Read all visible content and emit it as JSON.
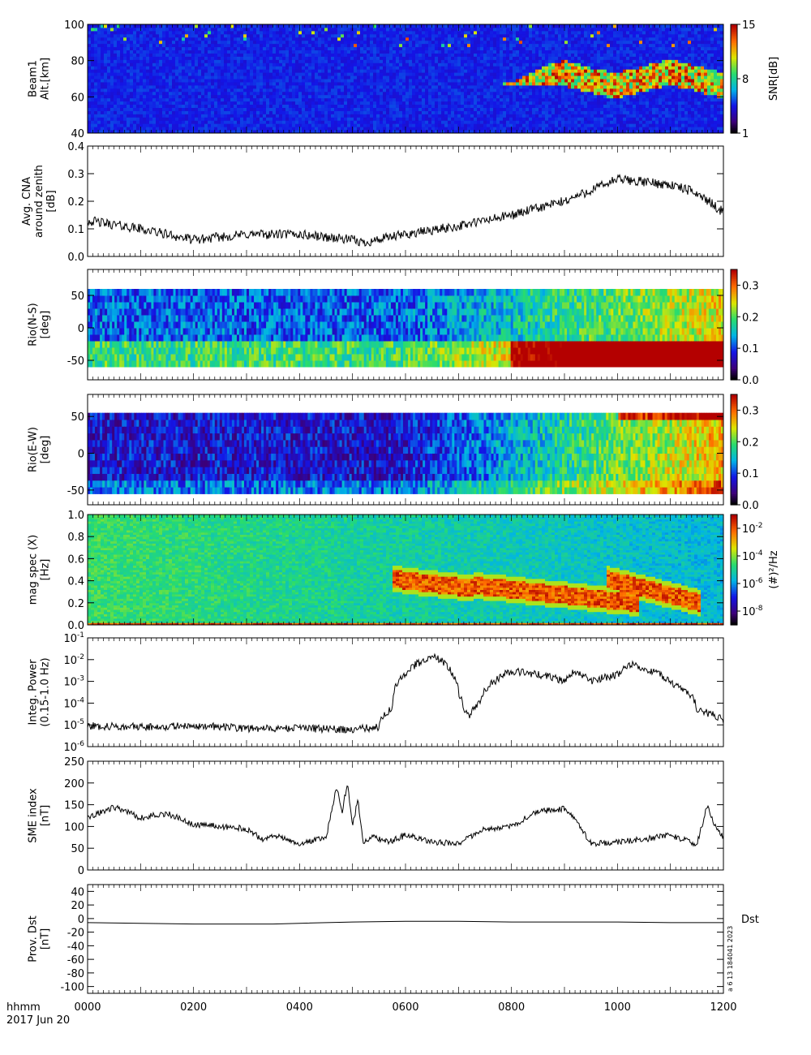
{
  "figure": {
    "x_axis": {
      "label_line1": "hhmm",
      "label_line2": "2017 Jun 20",
      "ticks": [
        0,
        200,
        400,
        600,
        800,
        1000,
        1200
      ],
      "tick_labels": [
        "0000",
        "0200",
        "0400",
        "0600",
        "0800",
        "1000",
        "1200"
      ],
      "range_hours": [
        0,
        12
      ]
    },
    "stamp": "a  6 13 184041 2023"
  },
  "chart_data": [
    {
      "type": "heatmap",
      "id": "beam1",
      "ylabel_lines": [
        "Beam1",
        "Alt.[km]"
      ],
      "ylim": [
        40,
        100
      ],
      "yticks": [
        40,
        60,
        80,
        100
      ],
      "colorbar": {
        "label": "SNR[dB]",
        "range": [
          1,
          15
        ],
        "ticks": [
          1,
          8,
          15
        ],
        "scale": "linear",
        "palette": "rainbow"
      },
      "features": [
        {
          "description": "enhanced SNR region",
          "t_start": 7.8,
          "t_end": 12.0,
          "alt_low": 62,
          "alt_high": 78,
          "peak_dB": 15
        }
      ]
    },
    {
      "type": "line",
      "id": "cna",
      "ylabel_lines": [
        "Avg. CNA",
        "around zenith",
        "[dB]"
      ],
      "ylim": [
        0.0,
        0.4
      ],
      "yticks": [
        0.0,
        0.1,
        0.2,
        0.3,
        0.4
      ],
      "ytick_labels": [
        "0.0",
        "0.1",
        "0.2",
        "0.3",
        "0.4"
      ],
      "x": [
        0,
        1,
        2,
        3,
        4,
        5,
        5.2,
        6,
        7,
        8,
        9,
        9.5,
        10,
        10.5,
        11,
        11.5,
        12
      ],
      "y": [
        0.13,
        0.1,
        0.06,
        0.08,
        0.08,
        0.06,
        0.05,
        0.08,
        0.11,
        0.15,
        0.2,
        0.24,
        0.28,
        0.27,
        0.26,
        0.23,
        0.16
      ]
    },
    {
      "type": "heatmap",
      "id": "rio_ns",
      "ylabel_lines": [
        "Rio(N-S)",
        "[deg]"
      ],
      "ylim": [
        -80,
        90
      ],
      "yticks": [
        -50,
        0,
        50
      ],
      "data_extent": [
        -60,
        60
      ],
      "colorbar": {
        "range": [
          0.0,
          0.35
        ],
        "ticks": [
          0.0,
          0.1,
          0.2,
          0.3
        ],
        "tick_labels": [
          "0.0",
          "0.1",
          "0.2",
          "0.3"
        ],
        "scale": "linear",
        "palette": "rainbow"
      }
    },
    {
      "type": "heatmap",
      "id": "rio_ew",
      "ylabel_lines": [
        "Rio(E-W)",
        "[deg]"
      ],
      "ylim": [
        -70,
        80
      ],
      "yticks": [
        -50,
        0,
        50
      ],
      "data_extent": [
        -55,
        55
      ],
      "colorbar": {
        "range": [
          0.0,
          0.35
        ],
        "ticks": [
          0.0,
          0.1,
          0.2,
          0.3
        ],
        "tick_labels": [
          "0.0",
          "0.1",
          "0.2",
          "0.3"
        ],
        "scale": "linear",
        "palette": "rainbow"
      }
    },
    {
      "type": "heatmap",
      "id": "mag_spec",
      "ylabel_lines": [
        "mag spec (X)",
        "[Hz]"
      ],
      "ylim": [
        0.0,
        1.0
      ],
      "yticks": [
        0.0,
        0.2,
        0.4,
        0.6,
        0.8,
        1.0
      ],
      "ytick_labels": [
        "0.0",
        "0.2",
        "0.4",
        "0.6",
        "0.8",
        "1.0"
      ],
      "colorbar": {
        "label": "(#)²/Hz",
        "scale": "log",
        "range_exp": [
          -9,
          -1
        ],
        "ticks_exp": [
          -8,
          -6,
          -4,
          -2
        ],
        "palette": "rainbow"
      },
      "features": [
        {
          "description": "Pc1 band 1",
          "t_start": 5.75,
          "t_end": 7.3,
          "f_center_start": 0.42,
          "f_center_end": 0.33
        },
        {
          "description": "Pc1 band 2",
          "t_start": 7.3,
          "t_end": 10.4,
          "f_center_start": 0.36,
          "f_center_end": 0.2
        },
        {
          "description": "Pc1 band 3",
          "t_start": 9.8,
          "t_end": 11.6,
          "f_center_start": 0.42,
          "f_center_end": 0.2
        }
      ]
    },
    {
      "type": "line",
      "id": "integ_power",
      "ylabel_lines": [
        "Integ. Power",
        "(0.15-1.0 Hz)"
      ],
      "yscale": "log",
      "ylim_exp": [
        -6,
        -1
      ],
      "yticks_exp": [
        -6,
        -5,
        -4,
        -3,
        -2,
        -1
      ],
      "x": [
        0,
        1,
        2,
        3,
        4,
        5,
        5.5,
        5.75,
        6,
        6.3,
        6.5,
        6.8,
        7.0,
        7.1,
        7.2,
        7.4,
        7.7,
        8.0,
        8.5,
        9,
        9.2,
        9.5,
        10,
        10.3,
        10.5,
        11,
        11.5,
        12
      ],
      "y": [
        9e-06,
        8e-06,
        9e-06,
        7e-06,
        7e-06,
        6e-06,
        8e-06,
        6e-05,
        0.002,
        0.008,
        0.015,
        0.004,
        0.0003,
        5e-05,
        2e-05,
        0.0001,
        0.001,
        0.003,
        0.002,
        0.001,
        0.003,
        0.001,
        0.002,
        0.006,
        0.004,
        0.0008,
        5e-05,
        1.5e-05
      ]
    },
    {
      "type": "line",
      "id": "sme",
      "ylabel_lines": [
        "SME index",
        "[nT]"
      ],
      "ylim": [
        0,
        250
      ],
      "yticks": [
        0,
        50,
        100,
        150,
        200,
        250
      ],
      "x": [
        0,
        0.5,
        1,
        1.5,
        2,
        2.5,
        3,
        3.3,
        3.6,
        4,
        4.5,
        4.7,
        4.8,
        4.9,
        5.0,
        5.1,
        5.2,
        5.4,
        5.7,
        6,
        6.5,
        7,
        7.5,
        8,
        8.5,
        9,
        9.2,
        9.5,
        10,
        10.5,
        11,
        11.5,
        11.7,
        11.8,
        12
      ],
      "y": [
        120,
        145,
        120,
        130,
        105,
        100,
        95,
        70,
        80,
        60,
        75,
        190,
        130,
        200,
        100,
        160,
        65,
        75,
        65,
        80,
        65,
        60,
        95,
        100,
        135,
        140,
        120,
        60,
        65,
        70,
        80,
        60,
        150,
        110,
        75
      ]
    },
    {
      "type": "line",
      "id": "dst",
      "ylabel_lines": [
        "Prov. Dst",
        "[nT]"
      ],
      "ylim": [
        -110,
        50
      ],
      "yticks": [
        -100,
        -80,
        -60,
        -40,
        -20,
        0,
        20,
        40
      ],
      "series_label": "Dst",
      "x": [
        0,
        1,
        2,
        3,
        3.5,
        4,
        5,
        6,
        7,
        8,
        9,
        10,
        11,
        12
      ],
      "y": [
        -6,
        -7,
        -8,
        -8,
        -8,
        -7,
        -5,
        -4,
        -4,
        -5,
        -5,
        -5,
        -6,
        -6
      ]
    }
  ]
}
